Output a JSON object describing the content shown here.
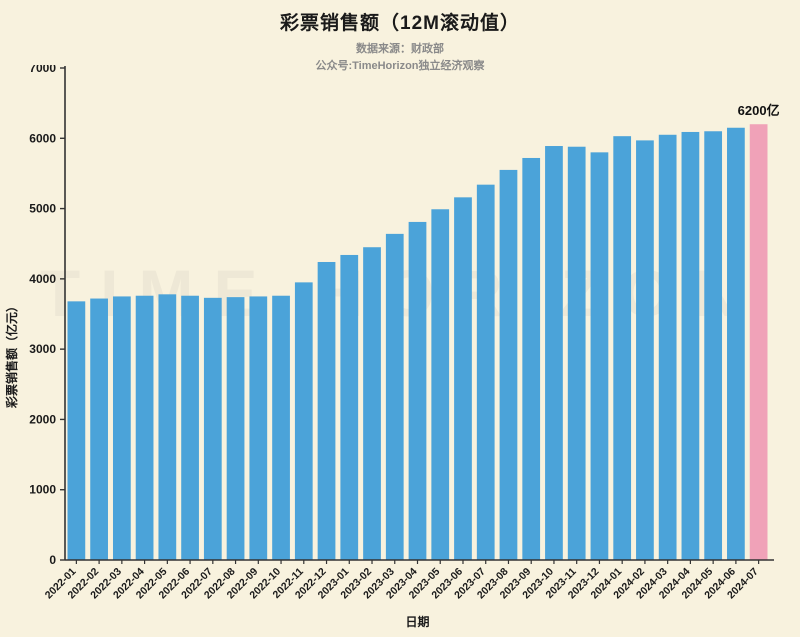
{
  "page": {
    "background": "#f8f2de"
  },
  "header": {
    "title": "彩票销售额（12M滚动值）",
    "subtitle_line1": "数据来源：财政部",
    "subtitle_line2": "公众号:TimeHorizon独立经济观察"
  },
  "watermark": "TIME HORIZON",
  "chart_data": {
    "type": "bar",
    "title": "彩票销售额（12M滚动值）",
    "xlabel": "日期",
    "ylabel": "彩票销售额（亿元）",
    "ylim": [
      0,
      7000
    ],
    "ytick_interval": 1000,
    "ytick_labels": [
      "0",
      "1000",
      "2000",
      "3000",
      "4000",
      "5000",
      "6000",
      "7000"
    ],
    "grid": false,
    "legend": "none",
    "categories": [
      "2022-01",
      "2022-02",
      "2022-03",
      "2022-04",
      "2022-05",
      "2022-06",
      "2022-07",
      "2022-08",
      "2022-09",
      "2022-10",
      "2022-11",
      "2022-12",
      "2023-01",
      "2023-02",
      "2023-03",
      "2023-04",
      "2023-05",
      "2023-06",
      "2023-07",
      "2023-08",
      "2023-09",
      "2023-10",
      "2023-11",
      "2023-12",
      "2024-01",
      "2024-02",
      "2024-03",
      "2024-04",
      "2024-05",
      "2024-06",
      "2024-07"
    ],
    "values": [
      3680,
      3720,
      3750,
      3760,
      3780,
      3760,
      3730,
      3740,
      3750,
      3760,
      3950,
      4240,
      4340,
      4450,
      4640,
      4810,
      4990,
      5160,
      5340,
      5550,
      5720,
      5890,
      5880,
      5800,
      6030,
      5970,
      6050,
      6090,
      6100,
      6150,
      6200
    ],
    "bar_color": "#4ba3d9",
    "highlight_index": 30,
    "highlight_color": "#f0a2b8",
    "axis_color": "#333333",
    "text_color": "#1a1a1a",
    "annotation": {
      "text": "6200亿",
      "index": 30
    }
  }
}
